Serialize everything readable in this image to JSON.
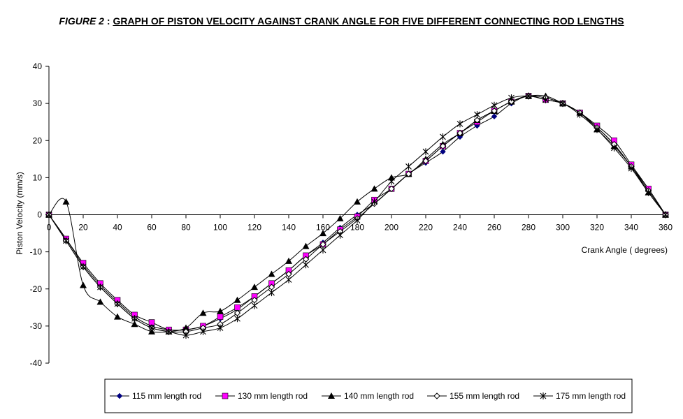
{
  "title": {
    "lead": "FIGURE 2",
    "separator": " : ",
    "main": "GRAPH OF PISTON VELOCITY AGAINST CRANK ANGLE FOR  FIVE DIFFERENT CONNECTING ROD LENGTHS"
  },
  "chart_data": {
    "type": "line",
    "xlabel": "Crank Angle ( degrees)",
    "ylabel": "Piston Velocity (mm/s)",
    "xlim": [
      0,
      360
    ],
    "ylim": [
      -40,
      40
    ],
    "x_ticks": [
      0,
      20,
      40,
      60,
      80,
      100,
      120,
      140,
      160,
      180,
      200,
      220,
      240,
      260,
      280,
      300,
      320,
      340,
      360
    ],
    "y_ticks": [
      -40,
      -30,
      -20,
      -10,
      0,
      10,
      20,
      30,
      40
    ],
    "grid": false,
    "legend_position": "bottom",
    "x": [
      0,
      10,
      20,
      30,
      40,
      50,
      60,
      70,
      80,
      90,
      100,
      110,
      120,
      130,
      140,
      150,
      160,
      170,
      180,
      190,
      200,
      210,
      220,
      230,
      240,
      250,
      260,
      270,
      280,
      290,
      300,
      310,
      320,
      330,
      340,
      350,
      360
    ],
    "series": [
      {
        "name": "115 mm length rod",
        "marker": "diamond",
        "color": "#000080",
        "values": [
          0,
          -6.5,
          -13.5,
          -19,
          -23.5,
          -27.5,
          -30,
          -31,
          -31,
          -30,
          -28,
          -25.5,
          -22,
          -18.5,
          -15,
          -11,
          -7.5,
          -3.5,
          0,
          3,
          7,
          11,
          14,
          17,
          21,
          24,
          26.5,
          30,
          32,
          31,
          30,
          27.5,
          23.5,
          19,
          13,
          7,
          0
        ]
      },
      {
        "name": "130 mm length rod",
        "marker": "square",
        "color": "#ff00ff",
        "values": [
          0,
          -6.5,
          -13,
          -18.5,
          -23,
          -27,
          -29,
          -31,
          -31,
          -30,
          -27.5,
          -25,
          -22,
          -18.5,
          -15,
          -11,
          -8,
          -4,
          -0.5,
          4,
          7,
          11,
          14.5,
          18.5,
          22,
          25,
          28,
          30.5,
          32,
          31,
          30,
          27.5,
          24,
          20,
          13.5,
          7,
          0
        ]
      },
      {
        "name": "140 mm length rod",
        "marker": "triangle",
        "color": "#000000",
        "values": [
          0,
          3.5,
          -19,
          -23.5,
          -27.5,
          -29.5,
          -31.5,
          -31.5,
          -30.5,
          -26.5,
          -26,
          -23,
          -19.5,
          -16,
          -12.5,
          -8.5,
          -5,
          -1,
          3.5,
          7,
          10,
          11,
          15,
          19,
          22,
          25.5,
          28,
          30.5,
          32,
          32,
          30,
          27.5,
          23,
          18.5,
          13,
          6,
          0
        ]
      },
      {
        "name": "155 mm length rod",
        "marker": "open-diamond",
        "color": "#000000",
        "values": [
          0,
          -7,
          -14,
          -19.5,
          -24,
          -28,
          -30.5,
          -31.5,
          -31.5,
          -30.5,
          -29.5,
          -26.5,
          -23,
          -19.5,
          -16,
          -12,
          -8,
          -4.5,
          -1,
          3,
          7,
          11,
          14.5,
          18.5,
          22,
          25.5,
          28,
          30.5,
          32,
          31.5,
          30,
          27.5,
          23.5,
          19,
          13,
          6.5,
          0
        ]
      },
      {
        "name": "175 mm length rod",
        "marker": "star",
        "color": "#000000",
        "values": [
          0,
          -7,
          -14,
          -19.5,
          -24,
          -28,
          -30.5,
          -31.5,
          -32.5,
          -31.5,
          -30.5,
          -28,
          -24.5,
          -21,
          -17.5,
          -13.5,
          -9.5,
          -5.5,
          -1.5,
          3.5,
          9,
          13,
          17,
          21,
          24.5,
          27,
          29.5,
          31.5,
          32,
          31,
          30,
          27,
          23,
          18,
          12.5,
          6,
          0
        ]
      }
    ]
  }
}
